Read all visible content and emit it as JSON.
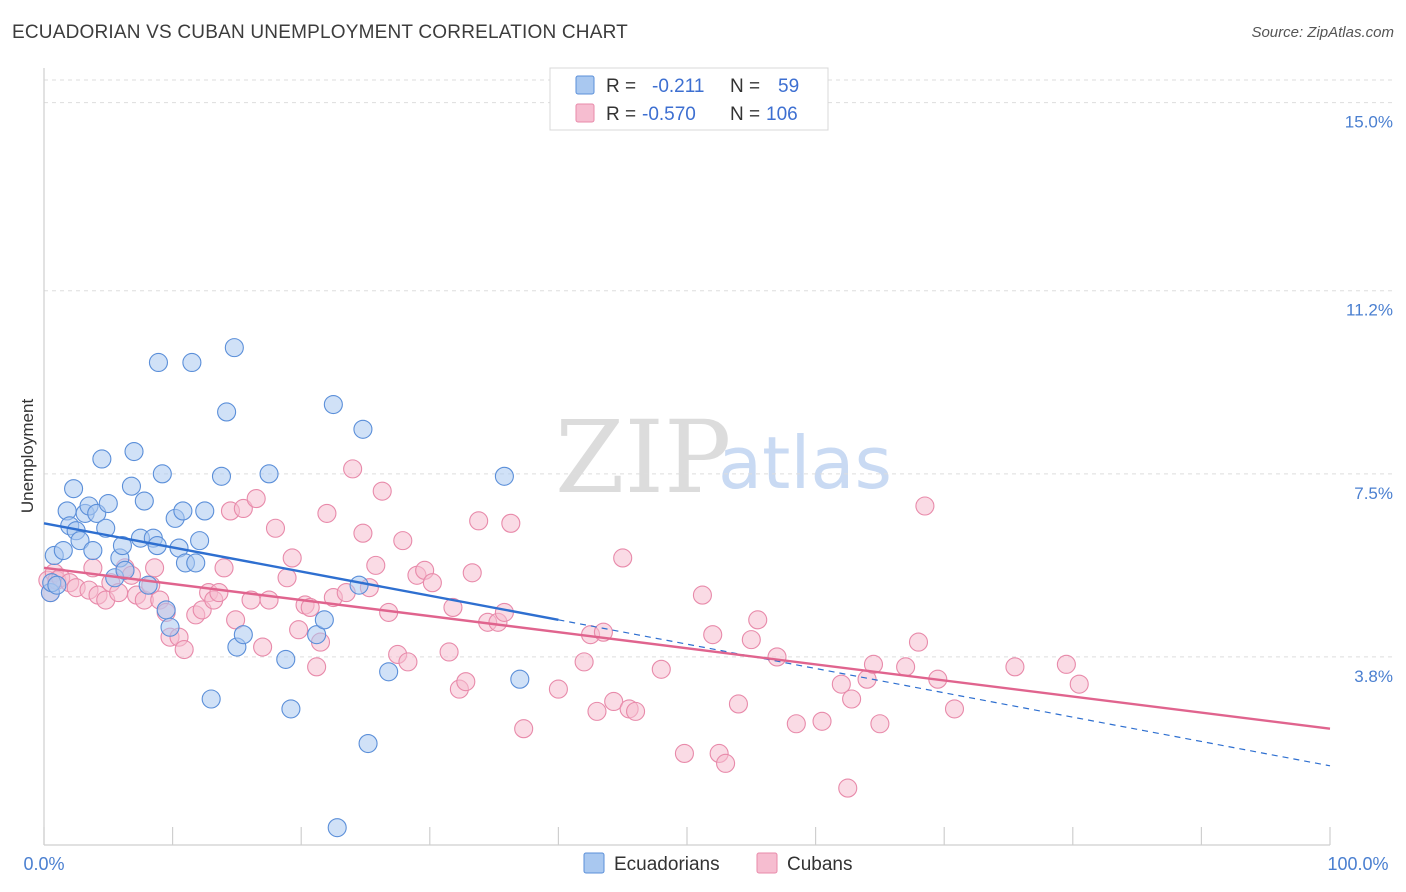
{
  "title": "ECUADORIAN VS CUBAN UNEMPLOYMENT CORRELATION CHART",
  "source": "Source: ZipAtlas.com",
  "watermark": {
    "zip": "ZIP",
    "atlas": "atlas"
  },
  "colors": {
    "ecuadorian_fill": "#a9c8f0",
    "ecuadorian_stroke": "#5b8fd9",
    "ecuadorian_line": "#2e6fd0",
    "cuban_fill": "#f6bdd0",
    "cuban_stroke": "#e88aaa",
    "cuban_line": "#e0648e",
    "tick_label": "#4a7fd0",
    "grid": "#dddddd"
  },
  "legend": {
    "rows": [
      {
        "r_label": "R =",
        "r_value": "-0.211",
        "n_label": "N =",
        "n_value": "59"
      },
      {
        "r_label": "R =",
        "r_value": "-0.570",
        "n_label": "N =",
        "n_value": "106"
      }
    ]
  },
  "chart_data": {
    "type": "scatter",
    "title": "ECUADORIAN VS CUBAN UNEMPLOYMENT CORRELATION CHART",
    "xlabel": "",
    "ylabel": "Unemployment",
    "xlim": [
      0,
      100
    ],
    "ylim": [
      0,
      15.7
    ],
    "x_tick_labels": [
      "0.0%",
      "100.0%"
    ],
    "y_ticks": [
      3.8,
      7.5,
      11.2,
      15.0
    ],
    "y_tick_labels": [
      "3.8%",
      "7.5%",
      "11.2%",
      "15.0%"
    ],
    "grid": true,
    "legend_position": "bottom",
    "series": [
      {
        "name": "Ecuadorians",
        "r": -0.211,
        "n": 59,
        "trend": {
          "x0": 0,
          "y0": 6.5,
          "x1": 40,
          "y1": 4.55,
          "dashed_to_x": 100,
          "dashed_to_y": 1.6
        },
        "points": [
          [
            0.5,
            5.1
          ],
          [
            0.6,
            5.3
          ],
          [
            0.8,
            5.85
          ],
          [
            1.0,
            5.25
          ],
          [
            1.5,
            5.95
          ],
          [
            1.8,
            6.75
          ],
          [
            2.0,
            6.45
          ],
          [
            2.3,
            7.2
          ],
          [
            2.5,
            6.35
          ],
          [
            2.8,
            6.15
          ],
          [
            3.2,
            6.7
          ],
          [
            3.5,
            6.85
          ],
          [
            3.8,
            5.95
          ],
          [
            4.1,
            6.7
          ],
          [
            4.5,
            7.8
          ],
          [
            4.8,
            6.4
          ],
          [
            5.0,
            6.9
          ],
          [
            5.5,
            5.4
          ],
          [
            5.9,
            5.8
          ],
          [
            6.1,
            6.05
          ],
          [
            6.3,
            5.55
          ],
          [
            6.8,
            7.25
          ],
          [
            7.0,
            7.95
          ],
          [
            7.5,
            6.2
          ],
          [
            7.8,
            6.95
          ],
          [
            8.1,
            5.25
          ],
          [
            8.5,
            6.2
          ],
          [
            8.8,
            6.05
          ],
          [
            8.9,
            9.75
          ],
          [
            9.2,
            7.5
          ],
          [
            9.5,
            4.75
          ],
          [
            9.8,
            4.4
          ],
          [
            10.2,
            6.6
          ],
          [
            10.5,
            6.0
          ],
          [
            10.8,
            6.75
          ],
          [
            11.0,
            5.7
          ],
          [
            11.5,
            9.75
          ],
          [
            11.8,
            5.7
          ],
          [
            12.1,
            6.15
          ],
          [
            12.5,
            6.75
          ],
          [
            13.0,
            2.95
          ],
          [
            13.8,
            7.45
          ],
          [
            14.2,
            8.75
          ],
          [
            14.8,
            10.05
          ],
          [
            15.0,
            4.0
          ],
          [
            15.5,
            4.25
          ],
          [
            17.5,
            7.5
          ],
          [
            18.8,
            3.75
          ],
          [
            19.2,
            2.75
          ],
          [
            21.2,
            4.25
          ],
          [
            21.8,
            4.55
          ],
          [
            22.8,
            0.35
          ],
          [
            22.5,
            8.9
          ],
          [
            24.5,
            5.25
          ],
          [
            24.8,
            8.4
          ],
          [
            25.2,
            2.05
          ],
          [
            26.8,
            3.5
          ],
          [
            35.8,
            7.45
          ],
          [
            37.0,
            3.35
          ]
        ]
      },
      {
        "name": "Cubans",
        "r": -0.57,
        "n": 106,
        "trend": {
          "x0": 0,
          "y0": 5.6,
          "x1": 100,
          "y1": 2.35
        },
        "points": [
          [
            0.3,
            5.35
          ],
          [
            0.5,
            5.1
          ],
          [
            0.8,
            5.5
          ],
          [
            1.0,
            5.35
          ],
          [
            1.3,
            5.4
          ],
          [
            2.0,
            5.3
          ],
          [
            2.5,
            5.2
          ],
          [
            3.5,
            5.15
          ],
          [
            3.8,
            5.6
          ],
          [
            4.2,
            5.05
          ],
          [
            4.8,
            4.95
          ],
          [
            5.2,
            5.3
          ],
          [
            5.8,
            5.1
          ],
          [
            6.3,
            5.6
          ],
          [
            6.8,
            5.45
          ],
          [
            7.2,
            5.05
          ],
          [
            7.8,
            4.95
          ],
          [
            8.3,
            5.25
          ],
          [
            8.6,
            5.6
          ],
          [
            9.0,
            4.95
          ],
          [
            9.5,
            4.7
          ],
          [
            9.8,
            4.2
          ],
          [
            10.5,
            4.2
          ],
          [
            10.9,
            3.95
          ],
          [
            11.8,
            4.65
          ],
          [
            12.3,
            4.75
          ],
          [
            12.8,
            5.1
          ],
          [
            13.2,
            4.95
          ],
          [
            13.6,
            5.1
          ],
          [
            14.0,
            5.6
          ],
          [
            14.5,
            6.75
          ],
          [
            14.9,
            4.55
          ],
          [
            15.5,
            6.8
          ],
          [
            16.1,
            4.95
          ],
          [
            16.5,
            7.0
          ],
          [
            17.0,
            4.0
          ],
          [
            17.5,
            4.95
          ],
          [
            18.0,
            6.4
          ],
          [
            18.9,
            5.4
          ],
          [
            19.3,
            5.8
          ],
          [
            19.8,
            4.35
          ],
          [
            20.3,
            4.85
          ],
          [
            20.7,
            4.8
          ],
          [
            21.2,
            3.6
          ],
          [
            21.5,
            4.1
          ],
          [
            22.0,
            6.7
          ],
          [
            22.5,
            5.0
          ],
          [
            23.5,
            5.1
          ],
          [
            24.0,
            7.6
          ],
          [
            24.8,
            6.3
          ],
          [
            25.3,
            5.2
          ],
          [
            25.8,
            5.65
          ],
          [
            26.3,
            7.15
          ],
          [
            26.8,
            4.7
          ],
          [
            27.5,
            3.85
          ],
          [
            27.9,
            6.15
          ],
          [
            28.3,
            3.7
          ],
          [
            29.0,
            5.45
          ],
          [
            29.6,
            5.55
          ],
          [
            30.2,
            5.3
          ],
          [
            31.5,
            3.9
          ],
          [
            31.8,
            4.8
          ],
          [
            32.3,
            3.15
          ],
          [
            32.8,
            3.3
          ],
          [
            33.3,
            5.5
          ],
          [
            33.8,
            6.55
          ],
          [
            34.5,
            4.5
          ],
          [
            35.3,
            4.5
          ],
          [
            35.8,
            4.7
          ],
          [
            36.3,
            6.5
          ],
          [
            37.3,
            2.35
          ],
          [
            40.0,
            3.15
          ],
          [
            42.0,
            3.7
          ],
          [
            42.5,
            4.25
          ],
          [
            43.0,
            2.7
          ],
          [
            43.5,
            4.3
          ],
          [
            44.3,
            2.9
          ],
          [
            45.0,
            5.8
          ],
          [
            45.5,
            2.75
          ],
          [
            46.0,
            2.7
          ],
          [
            48.0,
            3.55
          ],
          [
            49.8,
            1.85
          ],
          [
            51.2,
            5.05
          ],
          [
            52.0,
            4.25
          ],
          [
            52.5,
            1.85
          ],
          [
            53.0,
            1.65
          ],
          [
            54.0,
            2.85
          ],
          [
            55.0,
            4.15
          ],
          [
            55.5,
            4.55
          ],
          [
            57.0,
            3.8
          ],
          [
            58.5,
            2.45
          ],
          [
            60.5,
            2.5
          ],
          [
            62.0,
            3.25
          ],
          [
            62.5,
            1.15
          ],
          [
            62.8,
            2.95
          ],
          [
            64.0,
            3.35
          ],
          [
            64.5,
            3.65
          ],
          [
            65.0,
            2.45
          ],
          [
            67.0,
            3.6
          ],
          [
            68.0,
            4.1
          ],
          [
            68.5,
            6.85
          ],
          [
            69.5,
            3.35
          ],
          [
            70.8,
            2.75
          ],
          [
            75.5,
            3.6
          ],
          [
            79.5,
            3.65
          ],
          [
            80.5,
            3.25
          ]
        ]
      }
    ]
  }
}
